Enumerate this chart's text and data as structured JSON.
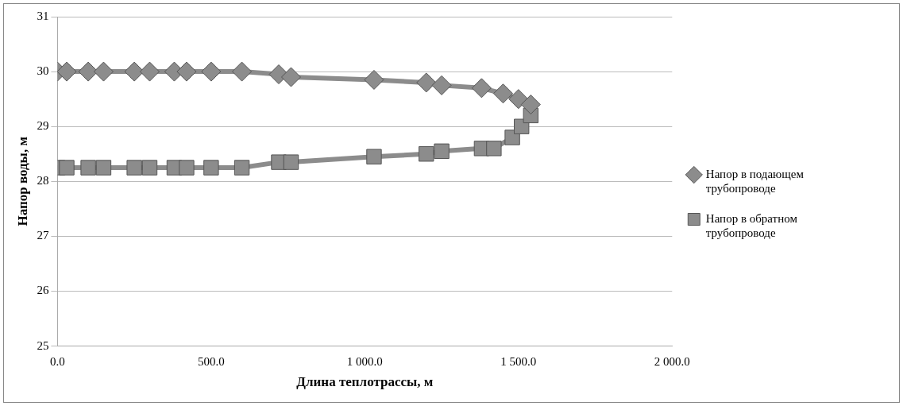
{
  "chart_data": {
    "type": "line",
    "xlabel": "Длина теплотрассы, м",
    "ylabel": "Напор воды, м",
    "xlim": [
      0,
      2000
    ],
    "xticks": [
      {
        "value": 0,
        "label": "0.0"
      },
      {
        "value": 500,
        "label": "500.0"
      },
      {
        "value": 1000,
        "label": "1 000.0"
      },
      {
        "value": 1500,
        "label": "1 500.0"
      },
      {
        "value": 2000,
        "label": "2 000.0"
      }
    ],
    "ylim": [
      25,
      31
    ],
    "yticks": [
      25,
      26,
      27,
      28,
      29,
      30,
      31
    ],
    "grid": "y",
    "legend": "right",
    "series": [
      {
        "name": "Напор в подающем трубопроводе",
        "color": "#8c8c8c",
        "marker": "diamond",
        "x": [
          0,
          30,
          100,
          150,
          250,
          300,
          380,
          420,
          500,
          600,
          720,
          760,
          1030,
          1200,
          1250,
          1380,
          1450,
          1500,
          1540
        ],
        "values": [
          30,
          30,
          30,
          30,
          30,
          30,
          30,
          30,
          30,
          30,
          29.95,
          29.9,
          29.85,
          29.8,
          29.75,
          29.7,
          29.6,
          29.5,
          29.4
        ]
      },
      {
        "name": "Напор в обратном трубопроводе",
        "color": "#8c8c8c",
        "marker": "square",
        "x": [
          0,
          30,
          100,
          150,
          250,
          300,
          380,
          420,
          500,
          600,
          720,
          760,
          1030,
          1200,
          1250,
          1380,
          1420,
          1480,
          1510,
          1540
        ],
        "values": [
          28.25,
          28.25,
          28.25,
          28.25,
          28.25,
          28.25,
          28.25,
          28.25,
          28.25,
          28.25,
          28.35,
          28.35,
          28.45,
          28.5,
          28.55,
          28.6,
          28.6,
          28.8,
          29.0,
          29.2
        ]
      }
    ]
  }
}
